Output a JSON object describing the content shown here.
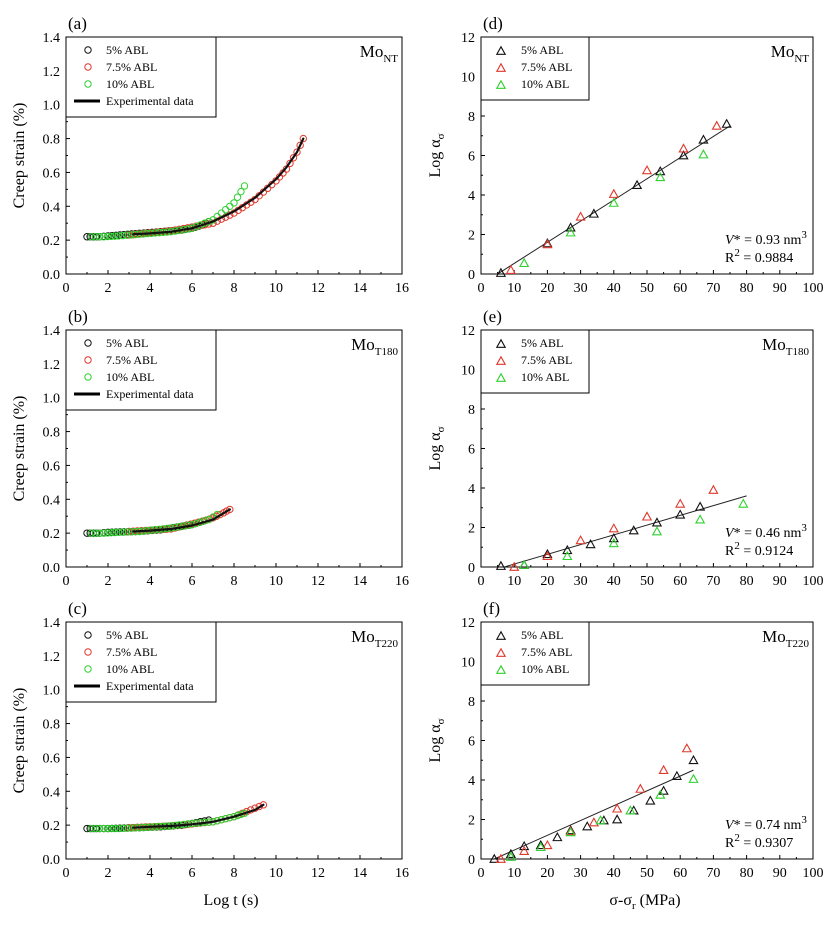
{
  "figure": {
    "left_xlabel": "Log t (s)",
    "right_xlabel_main": "σ-σ",
    "right_xlabel_sub": "r",
    "right_xlabel_unit": " (MPa)",
    "left_ylabel": "Creep strain (%)",
    "right_ylabel_main": "Log α",
    "right_ylabel_sub": "σ"
  },
  "colors": {
    "black": "#111111",
    "red": "#e0382c",
    "green": "#2fd12f",
    "fit": "#222222"
  },
  "chart_data": [
    {
      "id": "a",
      "label": "(a)",
      "type": "scatter",
      "material_main": "Mo",
      "material_sub": "NT",
      "xlim": [
        0,
        16
      ],
      "xticks": [
        0,
        2,
        4,
        6,
        8,
        10,
        12,
        14,
        16
      ],
      "ylim": [
        0,
        1.4
      ],
      "yticks": [
        "0.0",
        "0.2",
        "0.4",
        "0.6",
        "0.8",
        "1.0",
        "1.2",
        "1.4"
      ],
      "xlabel": "",
      "ylabel": "Creep strain (%)",
      "legend": [
        "5% ABL",
        "7.5% ABL",
        "10% ABL",
        "Experimental data"
      ],
      "series": [
        {
          "name": "5% ABL",
          "color": "black",
          "x": [
            1.0,
            1.3,
            1.6,
            2.0,
            3.5,
            4.5,
            5.5,
            6.0,
            6.5,
            6.8
          ],
          "y": [
            0.22,
            0.22,
            0.22,
            0.225,
            0.24,
            0.25,
            0.26,
            0.27,
            0.29,
            0.31
          ]
        },
        {
          "name": "7.5% ABL",
          "color": "red",
          "x": [
            3.0,
            5.0,
            7.0,
            8.0,
            9.0,
            10.0,
            10.5,
            11.0,
            11.3
          ],
          "y": [
            0.23,
            0.255,
            0.3,
            0.36,
            0.44,
            0.55,
            0.62,
            0.72,
            0.8
          ]
        },
        {
          "name": "10% ABL",
          "color": "green",
          "x": [
            1.2,
            1.8,
            2.5,
            3.5,
            5.0,
            6.0,
            7.0,
            8.0,
            8.5
          ],
          "y": [
            0.22,
            0.22,
            0.225,
            0.235,
            0.25,
            0.27,
            0.32,
            0.42,
            0.52
          ]
        },
        {
          "name": "Experimental data",
          "color": "black",
          "x": [
            3.2,
            4.0,
            5.0,
            6.0,
            7.0,
            8.0,
            9.0,
            10.0,
            10.5,
            11.0,
            11.3
          ],
          "y": [
            0.235,
            0.24,
            0.25,
            0.27,
            0.31,
            0.37,
            0.45,
            0.56,
            0.63,
            0.72,
            0.8
          ]
        }
      ]
    },
    {
      "id": "b",
      "label": "(b)",
      "type": "scatter",
      "material_main": "Mo",
      "material_sub": "T180",
      "xlim": [
        0,
        16
      ],
      "xticks": [
        0,
        2,
        4,
        6,
        8,
        10,
        12,
        14,
        16
      ],
      "ylim": [
        0,
        1.4
      ],
      "yticks": [
        "0.0",
        "0.2",
        "0.4",
        "0.6",
        "0.8",
        "1.0",
        "1.2",
        "1.4"
      ],
      "xlabel": "",
      "ylabel": "Creep strain (%)",
      "legend": [
        "5% ABL",
        "7.5% ABL",
        "10% ABL",
        "Experimental data"
      ],
      "series": [
        {
          "name": "5% ABL",
          "color": "black",
          "x": [
            1.0,
            1.3,
            1.6,
            2.0,
            3.5,
            4.5,
            5.5,
            6.0,
            6.5
          ],
          "y": [
            0.2,
            0.2,
            0.2,
            0.205,
            0.21,
            0.22,
            0.24,
            0.25,
            0.27
          ]
        },
        {
          "name": "7.5% ABL",
          "color": "red",
          "x": [
            3.0,
            5.0,
            6.5,
            7.0,
            7.5,
            7.8
          ],
          "y": [
            0.21,
            0.225,
            0.27,
            0.29,
            0.32,
            0.34
          ]
        },
        {
          "name": "10% ABL",
          "color": "green",
          "x": [
            1.2,
            1.8,
            2.5,
            3.5,
            5.0,
            6.0,
            6.8,
            7.2
          ],
          "y": [
            0.2,
            0.2,
            0.205,
            0.21,
            0.23,
            0.25,
            0.28,
            0.31
          ]
        },
        {
          "name": "Experimental data",
          "color": "black",
          "x": [
            3.2,
            4.0,
            5.0,
            6.0,
            7.0,
            7.8
          ],
          "y": [
            0.21,
            0.215,
            0.225,
            0.245,
            0.28,
            0.34
          ]
        }
      ]
    },
    {
      "id": "c",
      "label": "(c)",
      "type": "scatter",
      "material_main": "Mo",
      "material_sub": "T220",
      "xlim": [
        0,
        16
      ],
      "xticks": [
        0,
        2,
        4,
        6,
        8,
        10,
        12,
        14,
        16
      ],
      "ylim": [
        0,
        1.4
      ],
      "yticks": [
        "0.0",
        "0.2",
        "0.4",
        "0.6",
        "0.8",
        "1.0",
        "1.2",
        "1.4"
      ],
      "xlabel": "Log t (s)",
      "ylabel": "Creep strain (%)",
      "legend": [
        "5% ABL",
        "7.5% ABL",
        "10% ABL",
        "Experimental data"
      ],
      "series": [
        {
          "name": "5% ABL",
          "color": "black",
          "x": [
            1.0,
            1.3,
            1.6,
            2.0,
            3.5,
            4.5,
            5.5,
            6.0,
            6.8
          ],
          "y": [
            0.18,
            0.18,
            0.18,
            0.18,
            0.185,
            0.19,
            0.2,
            0.21,
            0.23
          ]
        },
        {
          "name": "7.5% ABL",
          "color": "red",
          "x": [
            3.0,
            5.0,
            7.0,
            8.0,
            8.8,
            9.4
          ],
          "y": [
            0.185,
            0.195,
            0.22,
            0.25,
            0.29,
            0.32
          ]
        },
        {
          "name": "10% ABL",
          "color": "green",
          "x": [
            1.2,
            1.8,
            2.5,
            3.5,
            5.0,
            6.0,
            7.0,
            8.0,
            8.5
          ],
          "y": [
            0.18,
            0.18,
            0.18,
            0.185,
            0.195,
            0.21,
            0.22,
            0.25,
            0.27
          ]
        },
        {
          "name": "Experimental data",
          "color": "black",
          "x": [
            3.2,
            4.0,
            5.0,
            6.0,
            7.0,
            8.0,
            9.0,
            9.4
          ],
          "y": [
            0.185,
            0.19,
            0.195,
            0.205,
            0.22,
            0.25,
            0.29,
            0.32
          ]
        }
      ]
    },
    {
      "id": "d",
      "label": "(d)",
      "type": "scatter",
      "material_main": "Mo",
      "material_sub": "NT",
      "xlim": [
        0,
        100
      ],
      "xticks": [
        0,
        10,
        20,
        30,
        40,
        50,
        60,
        70,
        80,
        90,
        100
      ],
      "ylim": [
        0,
        12
      ],
      "yticks": [
        "0",
        "2",
        "4",
        "6",
        "8",
        "10",
        "12"
      ],
      "xlabel": "",
      "ylabel": "Log ασ",
      "legend": [
        "5% ABL",
        "7.5% ABL",
        "10% ABL"
      ],
      "annotation_v_prefix": "V",
      "annotation_v_value": "* = 0.93 nm",
      "annotation_v_power": "3",
      "annotation_r_prefix": "R",
      "annotation_r_power": "2",
      "annotation_r_value": " = 0.9884",
      "fit": {
        "x": [
          5,
          75
        ],
        "y": [
          0.0,
          7.5
        ]
      },
      "series": [
        {
          "name": "5% ABL",
          "color": "black",
          "x": [
            6,
            20,
            27,
            34,
            47,
            54,
            61,
            67,
            74
          ],
          "y": [
            0.05,
            1.55,
            2.35,
            3.05,
            4.5,
            5.2,
            6.0,
            6.8,
            7.6
          ]
        },
        {
          "name": "7.5% ABL",
          "color": "red",
          "x": [
            9,
            20,
            30,
            40,
            50,
            61,
            71
          ],
          "y": [
            0.2,
            1.5,
            2.9,
            4.05,
            5.25,
            6.35,
            7.5
          ]
        },
        {
          "name": "10% ABL",
          "color": "green",
          "x": [
            13,
            27,
            40,
            54,
            67
          ],
          "y": [
            0.55,
            2.1,
            3.6,
            4.9,
            6.05
          ]
        }
      ]
    },
    {
      "id": "e",
      "label": "(e)",
      "type": "scatter",
      "material_main": "Mo",
      "material_sub": "T180",
      "xlim": [
        0,
        100
      ],
      "xticks": [
        0,
        10,
        20,
        30,
        40,
        50,
        60,
        70,
        80,
        90,
        100
      ],
      "ylim": [
        0,
        12
      ],
      "yticks": [
        "0",
        "2",
        "4",
        "6",
        "8",
        "10",
        "12"
      ],
      "xlabel": "",
      "ylabel": "Log ασ",
      "legend": [
        "5% ABL",
        "7.5% ABL",
        "10% ABL"
      ],
      "annotation_v_prefix": "V",
      "annotation_v_value": "* = 0.46 nm",
      "annotation_v_power": "3",
      "annotation_r_prefix": "R",
      "annotation_r_power": "2",
      "annotation_r_value": " = 0.9124",
      "fit": {
        "x": [
          7,
          80
        ],
        "y": [
          0.0,
          3.6
        ]
      },
      "series": [
        {
          "name": "5% ABL",
          "color": "black",
          "x": [
            6,
            13,
            20,
            26,
            33,
            40,
            46,
            53,
            60,
            66
          ],
          "y": [
            0.05,
            0.1,
            0.65,
            0.85,
            1.15,
            1.45,
            1.85,
            2.25,
            2.65,
            3.05
          ]
        },
        {
          "name": "7.5% ABL",
          "color": "red",
          "x": [
            10,
            20,
            30,
            40,
            50,
            60,
            70
          ],
          "y": [
            0.0,
            0.55,
            1.35,
            1.95,
            2.55,
            3.2,
            3.9
          ]
        },
        {
          "name": "10% ABL",
          "color": "green",
          "x": [
            13,
            26,
            40,
            53,
            66,
            79
          ],
          "y": [
            0.1,
            0.55,
            1.2,
            1.8,
            2.4,
            3.2
          ]
        }
      ]
    },
    {
      "id": "f",
      "label": "(f)",
      "type": "scatter",
      "material_main": "Mo",
      "material_sub": "T220",
      "xlim": [
        0,
        100
      ],
      "xticks": [
        0,
        10,
        20,
        30,
        40,
        50,
        60,
        70,
        80,
        90,
        100
      ],
      "ylim": [
        0,
        12
      ],
      "yticks": [
        "0",
        "2",
        "4",
        "6",
        "8",
        "10",
        "12"
      ],
      "xlabel": "σ-σr (MPa)",
      "ylabel": "Log ασ",
      "legend": [
        "5% ABL",
        "7.5% ABL",
        "10% ABL"
      ],
      "annotation_v_prefix": "V",
      "annotation_v_value": "* = 0.74 nm",
      "annotation_v_power": "3",
      "annotation_r_prefix": "R",
      "annotation_r_power": "2",
      "annotation_r_value": " = 0.9307",
      "fit": {
        "x": [
          4,
          64
        ],
        "y": [
          0.0,
          4.5
        ]
      },
      "series": [
        {
          "name": "5% ABL",
          "color": "black",
          "x": [
            4,
            9,
            13,
            18,
            23,
            27,
            32,
            37,
            41,
            46,
            51,
            55,
            59,
            64
          ],
          "y": [
            0.0,
            0.25,
            0.65,
            0.7,
            1.1,
            1.45,
            1.65,
            1.95,
            2.0,
            2.45,
            2.95,
            3.45,
            4.2,
            5.0
          ]
        },
        {
          "name": "7.5% ABL",
          "color": "red",
          "x": [
            6,
            13,
            20,
            27,
            34,
            41,
            48,
            55,
            62
          ],
          "y": [
            0.0,
            0.4,
            0.7,
            1.4,
            1.85,
            2.55,
            3.55,
            4.5,
            5.6
          ]
        },
        {
          "name": "10% ABL",
          "color": "green",
          "x": [
            9,
            18,
            27,
            36,
            45,
            54,
            64
          ],
          "y": [
            0.1,
            0.6,
            1.35,
            1.95,
            2.45,
            3.25,
            4.05
          ]
        }
      ]
    }
  ]
}
